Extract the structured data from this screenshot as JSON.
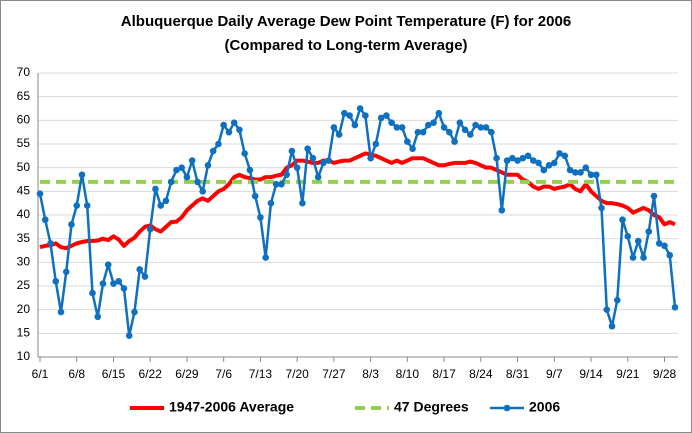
{
  "chart_data": {
    "type": "line",
    "title": "Albuquerque Daily Average Dew Point Temperature (F) for 2006",
    "subtitle": "(Compared to Long-term Average)",
    "categories": [
      "6/1",
      null,
      null,
      null,
      null,
      null,
      null,
      "6/8",
      null,
      null,
      null,
      null,
      null,
      null,
      "6/15",
      null,
      null,
      null,
      null,
      null,
      null,
      "6/22",
      null,
      null,
      null,
      null,
      null,
      null,
      "6/29",
      null,
      null,
      null,
      null,
      null,
      null,
      "7/6",
      null,
      null,
      null,
      null,
      null,
      null,
      "7/13",
      null,
      null,
      null,
      null,
      null,
      null,
      "7/20",
      null,
      null,
      null,
      null,
      null,
      null,
      "7/27",
      null,
      null,
      null,
      null,
      null,
      null,
      "8/3",
      null,
      null,
      null,
      null,
      null,
      null,
      "8/10",
      null,
      null,
      null,
      null,
      null,
      null,
      "8/17",
      null,
      null,
      null,
      null,
      null,
      null,
      "8/24",
      null,
      null,
      null,
      null,
      null,
      null,
      "8/31",
      null,
      null,
      null,
      null,
      null,
      null,
      "9/7",
      null,
      null,
      null,
      null,
      null,
      null,
      "9/14",
      null,
      null,
      null,
      null,
      null,
      null,
      "9/21",
      null,
      null,
      null,
      null,
      null,
      null,
      "9/28",
      null,
      null
    ],
    "series": [
      {
        "name": "1947-2006 Average",
        "color": "#ff0000",
        "width": 4,
        "dash": false,
        "markers": false,
        "values": [
          33.2,
          33.5,
          33.6,
          34.0,
          33.2,
          33.0,
          33.5,
          34.0,
          34.3,
          34.5,
          34.5,
          34.6,
          35.0,
          34.7,
          35.5,
          34.8,
          33.5,
          34.5,
          35.2,
          36.5,
          37.5,
          37.8,
          37.0,
          36.5,
          37.5,
          38.5,
          38.6,
          39.5,
          41.0,
          42.0,
          43.0,
          43.5,
          43.0,
          44.0,
          45.0,
          45.5,
          46.5,
          48.0,
          48.5,
          48.0,
          47.8,
          47.5,
          47.5,
          48.0,
          48.0,
          48.3,
          48.5,
          50.0,
          50.5,
          51.5,
          51.5,
          51.3,
          51.0,
          51.0,
          51.5,
          51.5,
          51.0,
          51.3,
          51.5,
          51.5,
          52.0,
          52.5,
          53.0,
          52.8,
          52.5,
          52.0,
          51.5,
          51.0,
          51.5,
          51.0,
          51.5,
          52.0,
          52.0,
          52.0,
          51.5,
          51.0,
          50.5,
          50.5,
          50.8,
          51.0,
          51.0,
          51.0,
          51.3,
          51.0,
          50.5,
          50.0,
          50.0,
          49.5,
          49.0,
          48.5,
          48.5,
          48.5,
          47.5,
          47.0,
          46.0,
          45.5,
          46.0,
          46.0,
          45.5,
          45.8,
          46.0,
          46.5,
          45.5,
          45.0,
          46.5,
          45.0,
          44.0,
          43.0,
          42.5,
          42.5,
          42.3,
          42.0,
          41.5,
          40.5,
          41.0,
          41.5,
          41.0,
          40.0,
          39.5,
          38.0,
          38.5,
          38.0
        ]
      },
      {
        "name": "47 Degrees",
        "color": "#92d050",
        "width": 4,
        "dash": true,
        "markers": false,
        "values": [
          47,
          47,
          47,
          47,
          47,
          47,
          47,
          47,
          47,
          47,
          47,
          47,
          47,
          47,
          47,
          47,
          47,
          47,
          47,
          47,
          47,
          47,
          47,
          47,
          47,
          47,
          47,
          47,
          47,
          47,
          47,
          47,
          47,
          47,
          47,
          47,
          47,
          47,
          47,
          47,
          47,
          47,
          47,
          47,
          47,
          47,
          47,
          47,
          47,
          47,
          47,
          47,
          47,
          47,
          47,
          47,
          47,
          47,
          47,
          47,
          47,
          47,
          47,
          47,
          47,
          47,
          47,
          47,
          47,
          47,
          47,
          47,
          47,
          47,
          47,
          47,
          47,
          47,
          47,
          47,
          47,
          47,
          47,
          47,
          47,
          47,
          47,
          47,
          47,
          47,
          47,
          47,
          47,
          47,
          47,
          47,
          47,
          47,
          47,
          47,
          47,
          47,
          47,
          47,
          47,
          47,
          47,
          47,
          47,
          47,
          47,
          47,
          47,
          47,
          47,
          47,
          47,
          47,
          47,
          47,
          47,
          47
        ]
      },
      {
        "name": "2006",
        "color": "#1070c0",
        "width": 2.5,
        "dash": false,
        "markers": true,
        "values": [
          44.5,
          39,
          34,
          26,
          19.5,
          28,
          38,
          42,
          48.5,
          42,
          23.5,
          18.5,
          25.5,
          29.5,
          25.5,
          26,
          24.5,
          14.5,
          19.5,
          28.5,
          27,
          37,
          45.5,
          42,
          43,
          47,
          49.5,
          50,
          48,
          51.5,
          47,
          45,
          50.5,
          53.5,
          55,
          59,
          57.5,
          59.5,
          58,
          53,
          49.5,
          44,
          39.5,
          31,
          42.5,
          46.5,
          46.5,
          48.5,
          53.5,
          50,
          42.5,
          54,
          52,
          48,
          51,
          51.5,
          58.5,
          57,
          61.5,
          61,
          59,
          62.5,
          61,
          52,
          55,
          60.5,
          61,
          59.5,
          58.5,
          58.5,
          55.5,
          54,
          57.5,
          57.5,
          59,
          59.5,
          61.5,
          58.5,
          57.5,
          55.5,
          59.5,
          58,
          57,
          59,
          58.5,
          58.5,
          57.5,
          52,
          41,
          51.5,
          52,
          51.5,
          52,
          52.5,
          51.5,
          51,
          49.5,
          50.5,
          51,
          53,
          52.5,
          49.5,
          49,
          49,
          50,
          48.5,
          48.5,
          41.5,
          20,
          16.5,
          22,
          39,
          35.5,
          31,
          34.5,
          31,
          36.5,
          44,
          34,
          33.5,
          31.5,
          20.5
        ]
      }
    ],
    "ylim": [
      10,
      70
    ],
    "yticks": [
      10,
      15,
      20,
      25,
      30,
      35,
      40,
      45,
      50,
      55,
      60,
      65,
      70
    ],
    "grid": true,
    "legend": "bottom"
  }
}
